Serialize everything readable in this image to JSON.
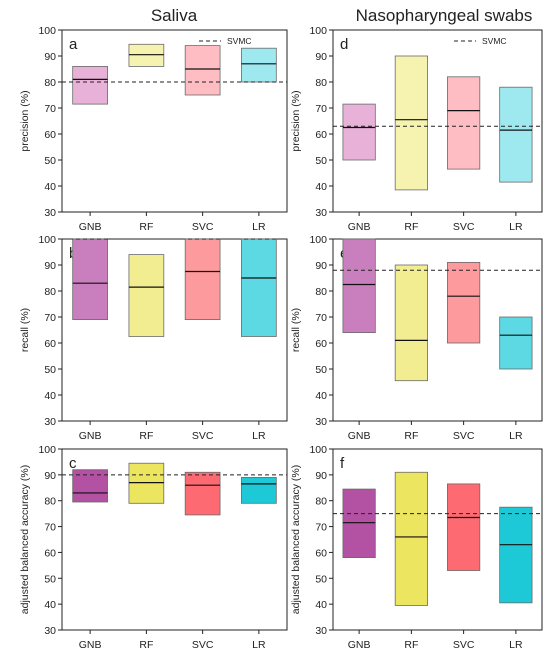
{
  "titles": {
    "left": "Saliva",
    "right": "Nasopharyngeal swabs"
  },
  "chart_data": [
    {
      "id": "a",
      "letter": "a",
      "type": "floating-bar-range",
      "column": "left",
      "row": 0,
      "ylabel": "precision (%)",
      "ylim": [
        30,
        100
      ],
      "yticks": [
        30,
        40,
        50,
        60,
        70,
        80,
        90,
        100
      ],
      "categories": [
        "GNB",
        "RF",
        "SVC",
        "LR"
      ],
      "colors": [
        "#e8b2d8",
        "#f6f2b0",
        "#fdbdc3",
        "#9de9ef"
      ],
      "low": [
        71.5,
        86,
        75,
        80
      ],
      "high": [
        86,
        94.5,
        94,
        93
      ],
      "median": [
        81,
        90.5,
        85,
        87
      ],
      "reference": {
        "value": 80,
        "label": "SVMC"
      },
      "legend": true
    },
    {
      "id": "b",
      "letter": "b",
      "type": "floating-bar-range",
      "column": "left",
      "row": 1,
      "ylabel": "recall (%)",
      "ylim": [
        30,
        100
      ],
      "yticks": [
        30,
        40,
        50,
        60,
        70,
        80,
        90,
        100
      ],
      "categories": [
        "GNB",
        "RF",
        "SVC",
        "LR"
      ],
      "colors": [
        "#c97fbd",
        "#f2ed90",
        "#fd9a9e",
        "#5cd9e3"
      ],
      "low": [
        69,
        62.5,
        69,
        62.5
      ],
      "high": [
        100,
        94,
        100,
        100
      ],
      "median": [
        83,
        81.5,
        87.5,
        85
      ],
      "reference": {
        "value": 100,
        "label": "SVMC"
      },
      "legend": false
    },
    {
      "id": "c",
      "letter": "c",
      "type": "floating-bar-range",
      "column": "left",
      "row": 2,
      "ylabel": "adjusted balanced accuracy (%)",
      "ylim": [
        30,
        100
      ],
      "yticks": [
        30,
        40,
        50,
        60,
        70,
        80,
        90,
        100
      ],
      "categories": [
        "GNB",
        "RF",
        "SVC",
        "LR"
      ],
      "colors": [
        "#b351a3",
        "#ece55f",
        "#fd6a72",
        "#1dc9d6"
      ],
      "low": [
        79.5,
        79,
        74.5,
        79
      ],
      "high": [
        92,
        94.5,
        91,
        89
      ],
      "median": [
        83,
        87,
        86,
        86.5
      ],
      "reference": {
        "value": 90,
        "label": "SVMC"
      },
      "legend": false
    },
    {
      "id": "d",
      "letter": "d",
      "type": "floating-bar-range",
      "column": "right",
      "row": 0,
      "ylabel": "precision (%)",
      "ylim": [
        30,
        100
      ],
      "yticks": [
        30,
        40,
        50,
        60,
        70,
        80,
        90,
        100
      ],
      "categories": [
        "GNB",
        "RF",
        "SVC",
        "LR"
      ],
      "colors": [
        "#e8b2d8",
        "#f6f2b0",
        "#fdbdc3",
        "#9de9ef"
      ],
      "low": [
        50,
        38.5,
        46.5,
        41.5
      ],
      "high": [
        71.5,
        90,
        82,
        78
      ],
      "median": [
        62.5,
        65.5,
        69,
        61.5
      ],
      "reference": {
        "value": 63,
        "label": "SVMC"
      },
      "legend": true
    },
    {
      "id": "e",
      "letter": "e",
      "type": "floating-bar-range",
      "column": "right",
      "row": 1,
      "ylabel": "recall (%)",
      "ylim": [
        30,
        100
      ],
      "yticks": [
        30,
        40,
        50,
        60,
        70,
        80,
        90,
        100
      ],
      "categories": [
        "GNB",
        "RF",
        "SVC",
        "LR"
      ],
      "colors": [
        "#c97fbd",
        "#f2ed90",
        "#fd9a9e",
        "#5cd9e3"
      ],
      "low": [
        64,
        45.5,
        60,
        50
      ],
      "high": [
        100,
        90,
        91,
        70
      ],
      "median": [
        82.5,
        61,
        78,
        63
      ],
      "reference": {
        "value": 88,
        "label": "SVMC"
      },
      "legend": false
    },
    {
      "id": "f",
      "letter": "f",
      "type": "floating-bar-range",
      "column": "right",
      "row": 2,
      "ylabel": "adjusted balanced accuracy (%)",
      "ylim": [
        30,
        100
      ],
      "yticks": [
        30,
        40,
        50,
        60,
        70,
        80,
        90,
        100
      ],
      "categories": [
        "GNB",
        "RF",
        "SVC",
        "LR"
      ],
      "colors": [
        "#b351a3",
        "#ece55f",
        "#fd6a72",
        "#1dc9d6"
      ],
      "low": [
        58,
        39.5,
        53,
        40.5
      ],
      "high": [
        84.5,
        91,
        86.5,
        77.5
      ],
      "median": [
        71.5,
        66,
        73.5,
        63
      ],
      "reference": {
        "value": 75,
        "label": "SVMC"
      },
      "legend": false
    }
  ]
}
